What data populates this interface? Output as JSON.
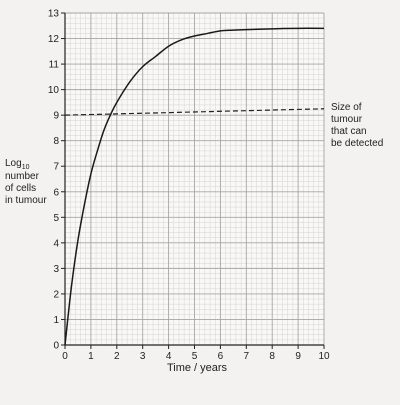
{
  "chart_data": {
    "type": "line",
    "xlabel": "Time / years",
    "ylabel": {
      "line1_prefix": "Log",
      "line1_sub": "10",
      "line2": "number",
      "line3": "of cells",
      "line4": "in tumour"
    },
    "xlim": [
      0,
      10
    ],
    "ylim": [
      0,
      13
    ],
    "xticks": [
      "0",
      "1",
      "2",
      "3",
      "4",
      "5",
      "6",
      "7",
      "8",
      "9",
      "10"
    ],
    "yticks": [
      "0",
      "1",
      "2",
      "3",
      "4",
      "5",
      "6",
      "7",
      "8",
      "9",
      "10",
      "11",
      "12",
      "13"
    ],
    "grid": true,
    "series": [
      {
        "x": [
          0,
          0.25,
          0.5,
          0.75,
          1,
          1.25,
          1.5,
          1.75,
          2,
          2.5,
          3,
          3.5,
          4,
          4.5,
          5,
          5.5,
          6,
          6.5,
          7,
          8,
          9,
          10
        ],
        "y": [
          0,
          2.3,
          4.1,
          5.5,
          6.7,
          7.6,
          8.4,
          9.0,
          9.5,
          10.3,
          10.9,
          11.3,
          11.7,
          11.95,
          12.1,
          12.2,
          12.3,
          12.33,
          12.35,
          12.38,
          12.4,
          12.4
        ]
      }
    ],
    "threshold": {
      "x": [
        0,
        10
      ],
      "y": [
        9.0,
        9.25
      ],
      "style": "dashed",
      "annotation": [
        "Size of",
        "tumour",
        "that can",
        "be detected"
      ]
    }
  }
}
